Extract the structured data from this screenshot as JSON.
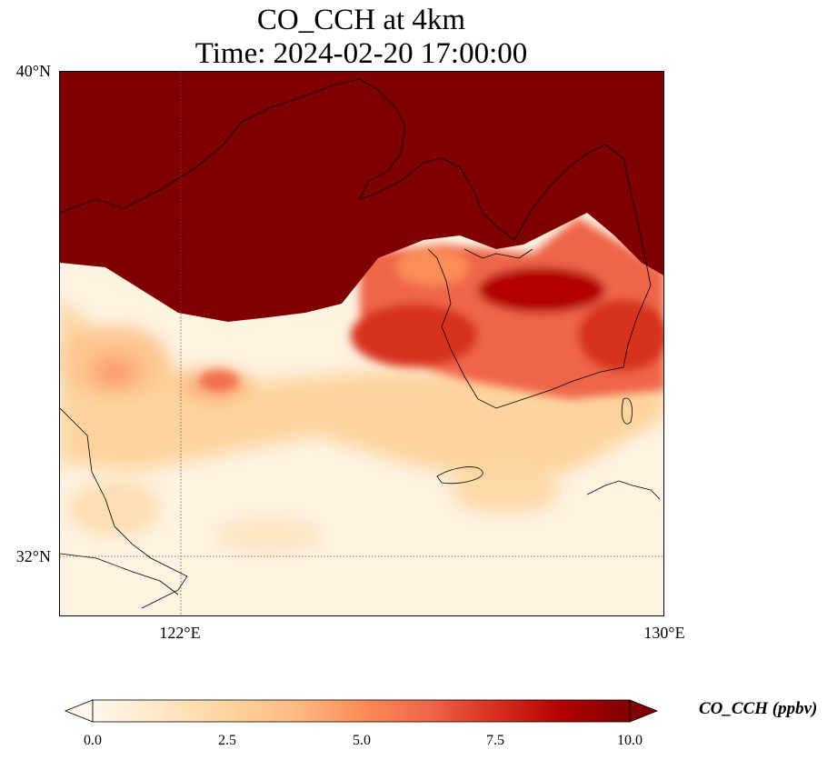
{
  "title": {
    "line1": "CO_CCH at 4km",
    "line2": "Time: 2024-02-20 17:00:00"
  },
  "map": {
    "lat_labels": [
      "40°N",
      "32°N"
    ],
    "lon_labels": [
      "122°E",
      "130°E"
    ],
    "lon_range_deg": [
      120,
      130
    ],
    "lat_range_deg": [
      31,
      40
    ],
    "gridlines": "dotted",
    "coastlines": "black"
  },
  "colorbar": {
    "title": "CO_CCH (ppbv)",
    "ticks": [
      "0.0",
      "2.5",
      "5.0",
      "7.5",
      "10.0"
    ],
    "range": [
      0,
      10
    ],
    "extend": "both",
    "colormap": "OrRd",
    "colors": [
      "#fff7ec",
      "#fee8c8",
      "#fdd49e",
      "#fdbb84",
      "#fc8d59",
      "#ef6548",
      "#d7301f",
      "#b30000",
      "#7f0000"
    ]
  }
}
